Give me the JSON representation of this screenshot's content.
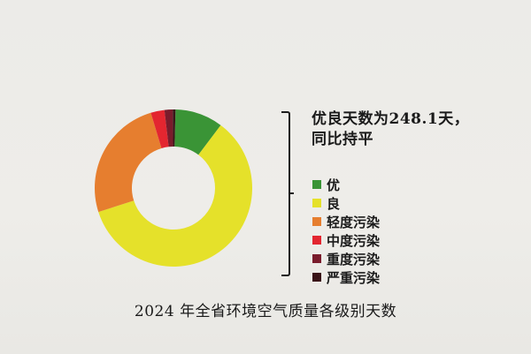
{
  "colors": {
    "excellent": "#3a9436",
    "good": "#e5e12a",
    "light_pollution": "#e67e2f",
    "moderate_pollution": "#e32630",
    "heavy_pollution": "#7a1c2c",
    "severe_pollution": "#3a1418"
  },
  "summary": {
    "line1": "优良天数为248.1天，",
    "line2": "同比持平"
  },
  "caption": "2024 年全省环境空气质量各级别天数",
  "chart_data": {
    "type": "pie",
    "donut": true,
    "title": "2024 年全省环境空气质量各级别天数",
    "legend_position": "right",
    "categories": [
      "优",
      "良",
      "轻度污染",
      "中度污染",
      "重度污染",
      "严重污染"
    ],
    "values": [
      35,
      213,
      90,
      10,
      6,
      2
    ],
    "unit": "天"
  }
}
